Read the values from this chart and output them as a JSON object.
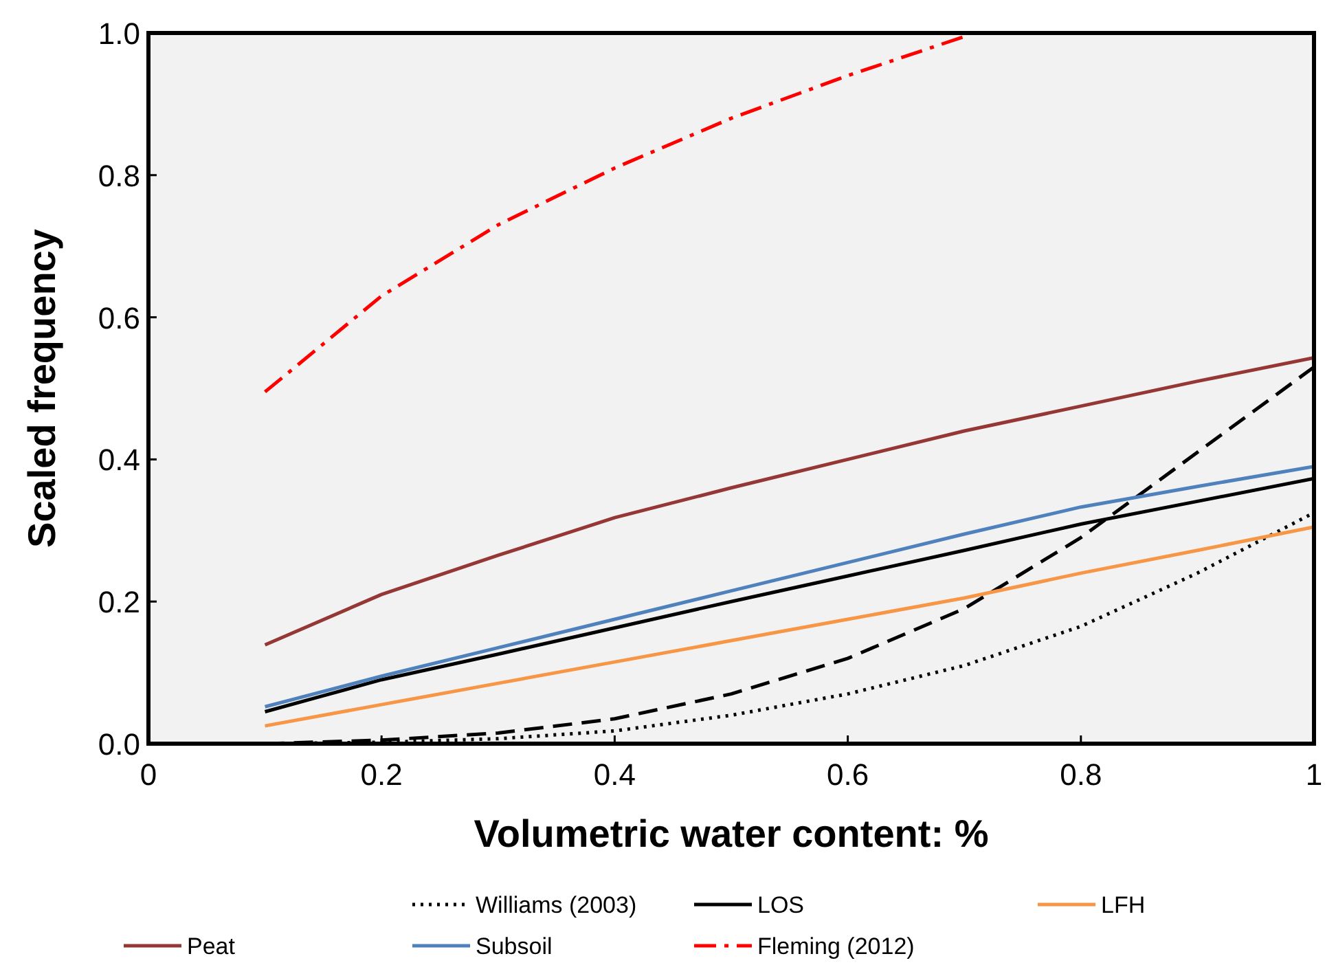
{
  "chart_data": {
    "type": "line",
    "xlabel": "Volumetric water content: %",
    "ylabel": "Scaled frequency",
    "xlim": [
      0,
      1
    ],
    "ylim": [
      0,
      1
    ],
    "xticks": [
      0,
      {
        "value": 0.2,
        "label": "0.2"
      },
      {
        "value": 0.4,
        "label": "0.4"
      },
      {
        "value": 0.6,
        "label": "0.6"
      },
      {
        "value": 0.8,
        "label": "0.8"
      },
      1
    ],
    "yticks": [
      {
        "value": 0,
        "label": "0.0"
      },
      {
        "value": 0.2,
        "label": "0.2"
      },
      {
        "value": 0.4,
        "label": "0.4"
      },
      {
        "value": 0.6,
        "label": "0.6"
      },
      {
        "value": 0.8,
        "label": "0.8"
      },
      {
        "value": 1,
        "label": "1.0"
      }
    ],
    "grid": false,
    "legend": "bottom",
    "marker": "none",
    "x": [
      0.1,
      0.2,
      0.3,
      0.4,
      0.5,
      0.6,
      0.7,
      0.8,
      0.9,
      1.0
    ],
    "series": [
      {
        "color": "#000000",
        "line_style": "dashed",
        "values": [
          0.0,
          0.005,
          0.015,
          0.035,
          0.07,
          0.12,
          0.19,
          0.29,
          0.41,
          0.53
        ]
      },
      {
        "name": "Williams (2003)",
        "color": "#000000",
        "line_style": "dotted",
        "values": [
          0.0,
          0.002,
          0.007,
          0.018,
          0.04,
          0.07,
          0.11,
          0.165,
          0.24,
          0.325
        ]
      },
      {
        "name": "LOS",
        "color": "#000000",
        "line_style": "solid",
        "values": [
          0.045,
          0.09,
          0.126,
          0.163,
          0.2,
          0.236,
          0.272,
          0.309,
          0.341,
          0.373
        ]
      },
      {
        "name": "LFH",
        "color": "#f79646",
        "line_style": "solid",
        "values": [
          0.025,
          0.055,
          0.085,
          0.115,
          0.145,
          0.175,
          0.205,
          0.24,
          0.272,
          0.305
        ]
      },
      {
        "name": "Peat",
        "color": "#953735",
        "line_style": "solid",
        "values": [
          0.139,
          0.21,
          0.265,
          0.318,
          0.36,
          0.4,
          0.44,
          0.475,
          0.51,
          0.543
        ]
      },
      {
        "name": "Subsoil",
        "color": "#4f81bd",
        "line_style": "solid",
        "values": [
          0.052,
          0.095,
          0.135,
          0.175,
          0.215,
          0.255,
          0.295,
          0.333,
          0.362,
          0.39
        ]
      },
      {
        "name": "Fleming (2012)",
        "color": "#ff0000",
        "line_style": "dashdot",
        "x": [
          0.1,
          0.2,
          0.3,
          0.4,
          0.5,
          0.6,
          0.7
        ],
        "values": [
          0.495,
          0.63,
          0.73,
          0.81,
          0.88,
          0.94,
          0.995
        ]
      }
    ]
  }
}
